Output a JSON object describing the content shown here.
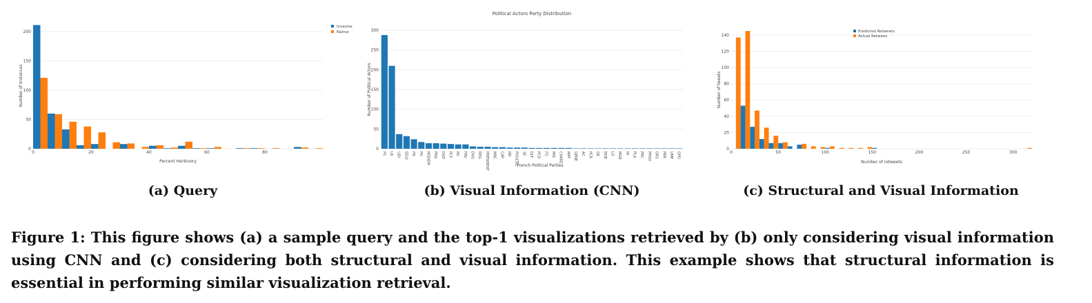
{
  "colors": {
    "blue": "#1f77b4",
    "orange": "#ff7f0e",
    "grid": "#eeeeee"
  },
  "subcaptions": {
    "a": "(a) Query",
    "b": "(b) Visual Information (CNN)",
    "c": "(c) Structural and Visual Information"
  },
  "caption": "Figure 1: This figure shows (a) a sample query and the top-1 visualizations retrieved by (b) only considering visual information using CNN and (c) considering both structural and visual information. This example shows that structural information is essential in performing similar visualization retrieval.",
  "chart_data": [
    {
      "type": "bar",
      "title": "",
      "xlabel": "Percent Herbivory",
      "ylabel": "Number of Instances",
      "xlim": [
        0,
        100
      ],
      "ylim": [
        0,
        215
      ],
      "xticks": [
        0,
        20,
        40,
        60,
        80
      ],
      "yticks": [
        0,
        50,
        100,
        150,
        200
      ],
      "grid": true,
      "legend": "top-right",
      "x": [
        2.5,
        7.5,
        12.5,
        17.5,
        22.5,
        27.5,
        32.5,
        37.5,
        42.5,
        47.5,
        52.5,
        57.5,
        62.5,
        67.5,
        72.5,
        77.5,
        82.5,
        87.5,
        92.5,
        97.5
      ],
      "series": [
        {
          "name": "Invasive",
          "values": [
            211,
            60,
            33,
            6,
            8,
            0,
            8,
            0,
            5,
            1,
            5,
            1,
            1,
            0,
            1,
            1,
            0,
            0,
            3,
            0
          ]
        },
        {
          "name": "Native",
          "values": [
            121,
            59,
            46,
            38,
            28,
            11,
            9,
            3,
            6,
            2,
            12,
            1,
            3,
            0,
            1,
            1,
            1,
            0,
            2,
            1
          ]
        }
      ]
    },
    {
      "type": "bar",
      "title": "Political Actors Party Distribution",
      "xlabel": "French  Political Parties",
      "ylabel": "Number of Political Actors",
      "ylim": [
        0,
        300
      ],
      "yticks": [
        0,
        50,
        100,
        150,
        200,
        250,
        300
      ],
      "grid": true,
      "categories": [
        "PS",
        "LR",
        "UDI",
        "EELV",
        "FN",
        "PG",
        "MODEM",
        "PRG",
        "DVD",
        "PCF",
        "NC",
        "FRV",
        "DVG",
        "REG",
        "PRÉSIDENT",
        "MRC",
        "CAP",
        "ND",
        "POULTEL",
        "SE",
        "DLF",
        "PCD",
        "FG",
        "MIS",
        "CHARE",
        "MPF",
        "GÉNÉ",
        "AC",
        "PCR",
        "GE",
        "EKIE",
        "LO",
        "MGR",
        "NI",
        "PLA",
        "PRC",
        "PPDO",
        "GRS",
        "PBR",
        "UMP",
        "GPO"
      ],
      "values": [
        288,
        210,
        37,
        32,
        24,
        17,
        14,
        14,
        13,
        12,
        11,
        11,
        6,
        5,
        5,
        4,
        4,
        3,
        3,
        3,
        2,
        2,
        2,
        2,
        2,
        2,
        1,
        1,
        1,
        1,
        1,
        1,
        1,
        1,
        1,
        1,
        1,
        1,
        1,
        1,
        1
      ]
    },
    {
      "type": "bar",
      "title": "",
      "xlabel": "Number of retweets",
      "ylabel": "Number of tweets",
      "xlim": [
        0,
        320
      ],
      "ylim": [
        0,
        145
      ],
      "xticks": [
        0,
        50,
        100,
        150,
        200,
        250,
        300
      ],
      "yticks": [
        0,
        20,
        40,
        60,
        80,
        100,
        120,
        140
      ],
      "grid": true,
      "legend": "top-center",
      "x": [
        5,
        15,
        25,
        35,
        45,
        55,
        65,
        75,
        85,
        95,
        105,
        115,
        125,
        135,
        145,
        155,
        165,
        175,
        185,
        195,
        205,
        215,
        225,
        235,
        245,
        255,
        265,
        275,
        285,
        295,
        305,
        315
      ],
      "series": [
        {
          "name": "Predicted Retweets",
          "values": [
            0,
            53,
            27,
            12,
            7,
            7,
            3,
            5,
            0,
            0,
            1,
            0,
            0,
            0,
            0,
            1,
            0,
            0,
            0,
            0,
            0,
            0,
            0,
            0,
            0,
            0,
            0,
            0,
            0,
            0,
            0,
            0
          ]
        },
        {
          "name": "Actual Retwees",
          "values": [
            137,
            145,
            47,
            26,
            16,
            8,
            0,
            6,
            3,
            2,
            3,
            1,
            1,
            1,
            2,
            0,
            0,
            0,
            0,
            0,
            0,
            0,
            0,
            0,
            0,
            0,
            0,
            0,
            0,
            0,
            0,
            1
          ]
        }
      ]
    }
  ]
}
